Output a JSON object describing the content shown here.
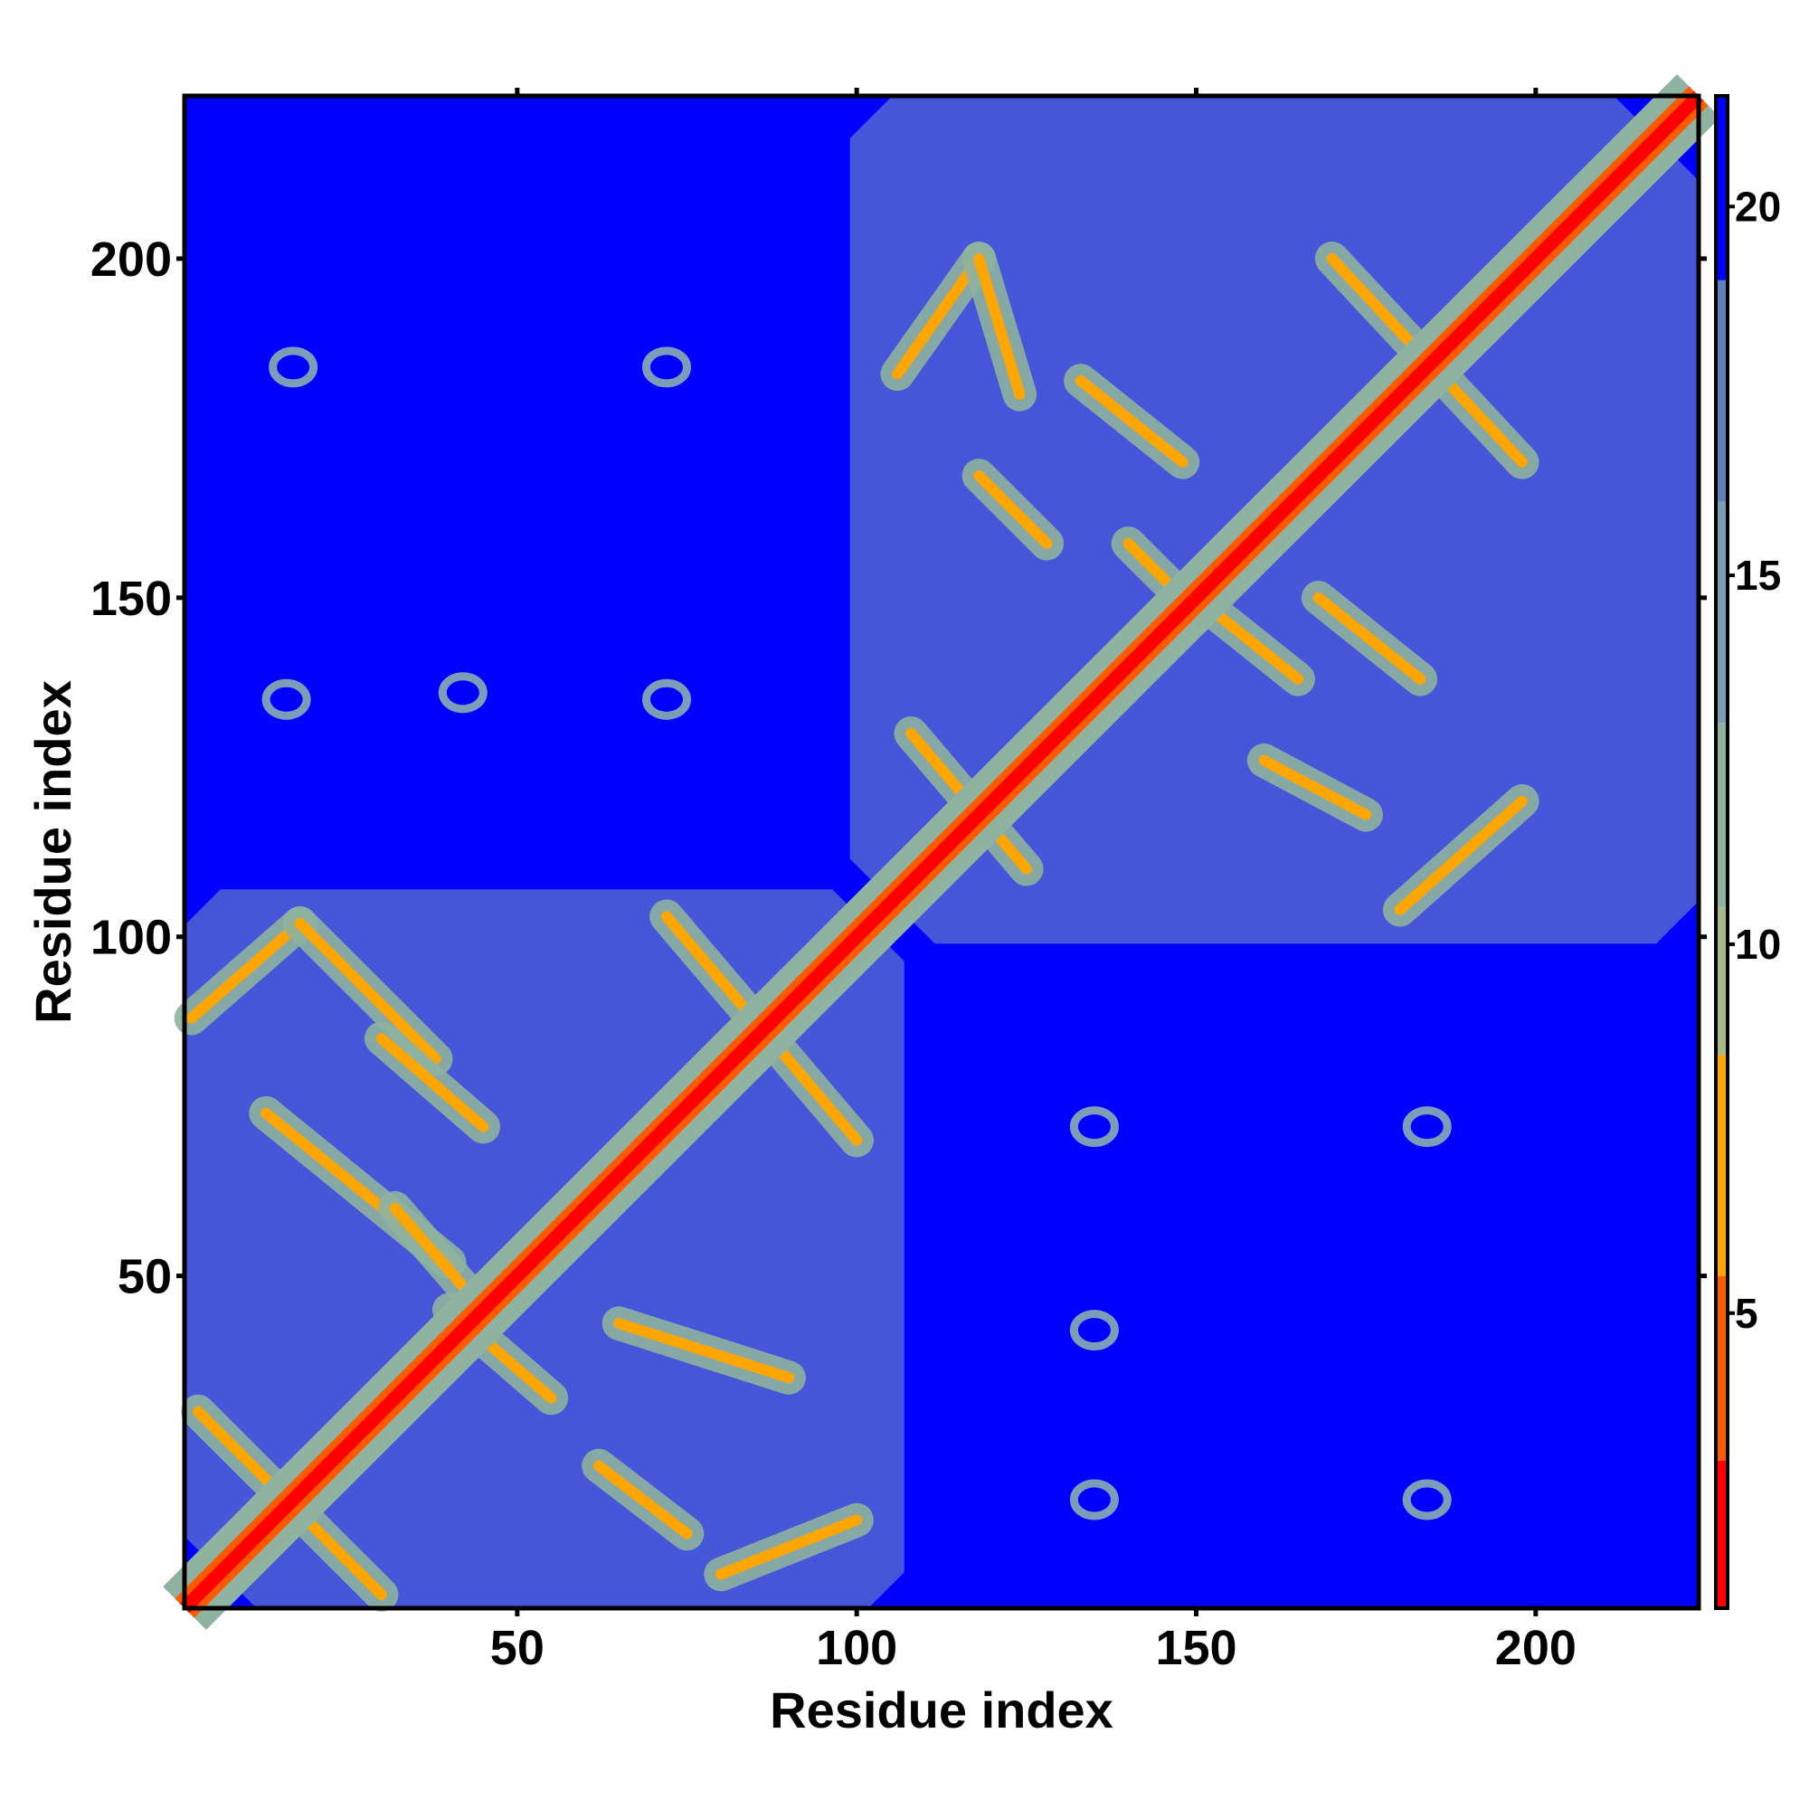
{
  "chart_data": {
    "type": "heatmap",
    "title": "",
    "xlabel": "Residue index",
    "ylabel": "Residue index",
    "xlim": [
      1,
      224
    ],
    "ylim": [
      1,
      224
    ],
    "x_ticks": [
      50,
      100,
      150,
      200
    ],
    "y_ticks": [
      50,
      100,
      150,
      200
    ],
    "x_tick_labels": [
      "50",
      "100",
      "150",
      "200"
    ],
    "y_tick_labels": [
      "50",
      "100",
      "150",
      "200"
    ],
    "colorbar": {
      "range": [
        1,
        21.5
      ],
      "ticks": [
        5,
        10,
        15,
        20
      ],
      "tick_labels": [
        "5",
        "10",
        "15",
        "20"
      ],
      "colors": [
        {
          "max": 3,
          "color": "#ff0000"
        },
        {
          "max": 5.5,
          "color": "#ff5a00"
        },
        {
          "max": 8.5,
          "color": "#ffa500"
        },
        {
          "max": 10.5,
          "color": "#a8b98a"
        },
        {
          "max": 13,
          "color": "#8fb3a0"
        },
        {
          "max": 16,
          "color": "#7d9cb8"
        },
        {
          "max": 19,
          "color": "#5f80bb"
        },
        {
          "max": 21.5,
          "color": "#0000ff"
        }
      ]
    },
    "background_value": 21.5,
    "background_color": "#0000ff",
    "domains": [
      {
        "name": "domain-1",
        "range": [
          1,
          107
        ]
      },
      {
        "name": "domain-2",
        "range": [
          99,
          224
        ]
      }
    ],
    "diagonal_band": {
      "range": [
        1,
        224
      ]
    },
    "cross_strands": [
      {
        "from": [
          3,
          30
        ],
        "to": [
          30,
          3
        ]
      },
      {
        "from": [
          2,
          88
        ],
        "to": [
          18,
          102
        ]
      },
      {
        "from": [
          18,
          102
        ],
        "to": [
          38,
          82
        ]
      },
      {
        "from": [
          13,
          74
        ],
        "to": [
          40,
          52
        ]
      },
      {
        "from": [
          30,
          85
        ],
        "to": [
          45,
          72
        ]
      },
      {
        "from": [
          32,
          60
        ],
        "to": [
          45,
          45
        ]
      },
      {
        "from": [
          40,
          45
        ],
        "to": [
          55,
          32
        ]
      },
      {
        "from": [
          62,
          22
        ],
        "to": [
          75,
          12
        ]
      },
      {
        "from": [
          65,
          43
        ],
        "to": [
          90,
          35
        ]
      },
      {
        "from": [
          72,
          103
        ],
        "to": [
          100,
          70
        ]
      },
      {
        "from": [
          80,
          6
        ],
        "to": [
          100,
          14
        ]
      },
      {
        "from": [
          106,
          183
        ],
        "to": [
          118,
          200
        ]
      },
      {
        "from": [
          118,
          200
        ],
        "to": [
          124,
          180
        ]
      },
      {
        "from": [
          133,
          182
        ],
        "to": [
          148,
          170
        ]
      },
      {
        "from": [
          118,
          168
        ],
        "to": [
          128,
          158
        ]
      },
      {
        "from": [
          140,
          158
        ],
        "to": [
          150,
          148
        ]
      },
      {
        "from": [
          150,
          150
        ],
        "to": [
          165,
          138
        ]
      },
      {
        "from": [
          168,
          150
        ],
        "to": [
          183,
          138
        ]
      },
      {
        "from": [
          108,
          130
        ],
        "to": [
          125,
          110
        ]
      },
      {
        "from": [
          160,
          126
        ],
        "to": [
          175,
          118
        ]
      },
      {
        "from": [
          170,
          200
        ],
        "to": [
          198,
          170
        ]
      },
      {
        "from": [
          180,
          104
        ],
        "to": [
          198,
          120
        ]
      }
    ],
    "off_domain_spots": [
      {
        "x": 17,
        "y": 184
      },
      {
        "x": 72,
        "y": 184
      },
      {
        "x": 16,
        "y": 135
      },
      {
        "x": 72,
        "y": 135
      },
      {
        "x": 42,
        "y": 136
      },
      {
        "x": 135,
        "y": 72
      },
      {
        "x": 184,
        "y": 72
      },
      {
        "x": 135,
        "y": 17
      },
      {
        "x": 184,
        "y": 17
      },
      {
        "x": 135,
        "y": 42
      }
    ]
  }
}
